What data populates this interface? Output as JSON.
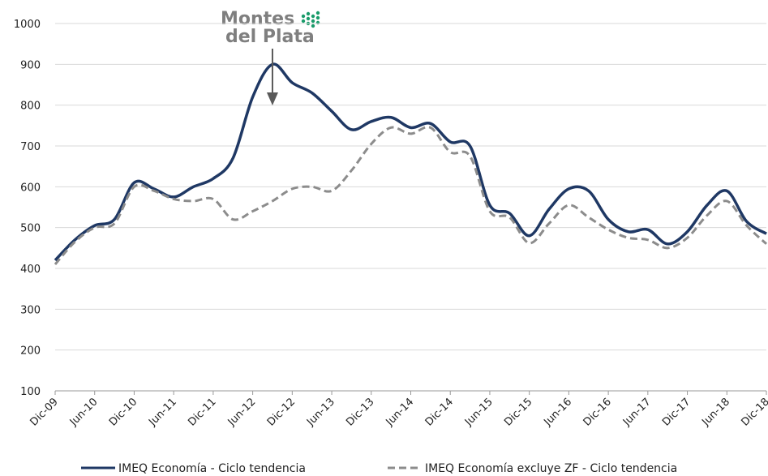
{
  "chart_data": {
    "type": "line",
    "categories": [
      "Dic-09",
      null,
      "Jun-10",
      null,
      "Dic-10",
      null,
      "Jun-11",
      null,
      "Dic-11",
      null,
      "Jun-12",
      null,
      "Dic-12",
      null,
      "Jun-13",
      null,
      "Dic-13",
      null,
      "Jun-14",
      null,
      "Dic-14",
      null,
      "Jun-15",
      null,
      "Dic-15",
      null,
      "Jun-16",
      null,
      "Dic-16",
      null,
      "Jun-17",
      null,
      "Dic-17",
      null,
      "Jun-18",
      null,
      "Dic-18"
    ],
    "series": [
      {
        "name": "IMEQ Economía - Ciclo tendencia",
        "color": "#1f3864",
        "dash": false,
        "values": [
          420,
          470,
          505,
          520,
          610,
          595,
          575,
          600,
          620,
          670,
          820,
          900,
          855,
          830,
          785,
          740,
          760,
          770,
          745,
          755,
          710,
          700,
          555,
          535,
          480,
          545,
          595,
          590,
          520,
          490,
          495,
          460,
          490,
          555,
          590,
          515,
          485
        ]
      },
      {
        "name": "IMEQ Economía excluye ZF - Ciclo tendencia",
        "color": "#8c8c8c",
        "dash": true,
        "values": [
          410,
          465,
          500,
          510,
          600,
          590,
          570,
          565,
          570,
          520,
          540,
          565,
          595,
          600,
          590,
          640,
          705,
          745,
          730,
          745,
          685,
          675,
          540,
          525,
          462,
          510,
          555,
          525,
          495,
          475,
          470,
          450,
          475,
          530,
          565,
          505,
          460
        ]
      }
    ],
    "ylim": [
      100,
      1000
    ],
    "yticks": [
      100,
      200,
      300,
      400,
      500,
      600,
      700,
      800,
      900,
      1000
    ],
    "grid": true,
    "annotation": {
      "line1": "Montes",
      "line2": "del Plata",
      "at": 11
    }
  }
}
